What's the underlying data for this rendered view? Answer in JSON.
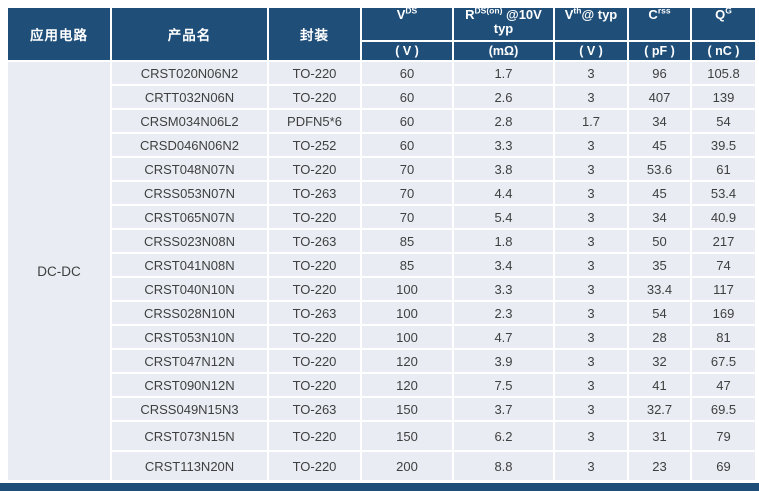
{
  "table": {
    "application": "DC-DC",
    "columns": [
      {
        "label": "应用电路"
      },
      {
        "label": "产品名"
      },
      {
        "label": "封装"
      },
      {
        "base": "V",
        "sup": "DS",
        "rest": "",
        "line2": "",
        "unit": "( V )"
      },
      {
        "base": "R",
        "sup": "DS(on)",
        "rest": " @10V",
        "line2": "typ",
        "unit": "(mΩ)"
      },
      {
        "base": "V",
        "sup": "th",
        "rest": "@ typ",
        "line2": "",
        "unit": "( V )"
      },
      {
        "base": "C",
        "sup": "rss",
        "rest": "",
        "line2": "",
        "unit": "( pF )"
      },
      {
        "base": "Q",
        "sup": "G",
        "rest": "",
        "line2": "",
        "unit": "( nC )"
      }
    ],
    "rows": [
      {
        "product": "CRST020N06N2",
        "package": "TO-220",
        "vds": "60",
        "rdson": "1.7",
        "vth": "3",
        "crss": "96",
        "qg": "105.8",
        "tall": false
      },
      {
        "product": "CRTT032N06N",
        "package": "TO-220",
        "vds": "60",
        "rdson": "2.6",
        "vth": "3",
        "crss": "407",
        "qg": "139",
        "tall": false
      },
      {
        "product": "CRSM034N06L2",
        "package": "PDFN5*6",
        "vds": "60",
        "rdson": "2.8",
        "vth": "1.7",
        "crss": "34",
        "qg": "54",
        "tall": false
      },
      {
        "product": "CRSD046N06N2",
        "package": "TO-252",
        "vds": "60",
        "rdson": "3.3",
        "vth": "3",
        "crss": "45",
        "qg": "39.5",
        "tall": false
      },
      {
        "product": "CRST048N07N",
        "package": "TO-220",
        "vds": "70",
        "rdson": "3.8",
        "vth": "3",
        "crss": "53.6",
        "qg": "61",
        "tall": false
      },
      {
        "product": "CRSS053N07N",
        "package": "TO-263",
        "vds": "70",
        "rdson": "4.4",
        "vth": "3",
        "crss": "45",
        "qg": "53.4",
        "tall": false
      },
      {
        "product": "CRST065N07N",
        "package": "TO-220",
        "vds": "70",
        "rdson": "5.4",
        "vth": "3",
        "crss": "34",
        "qg": "40.9",
        "tall": false
      },
      {
        "product": "CRSS023N08N",
        "package": "TO-263",
        "vds": "85",
        "rdson": "1.8",
        "vth": "3",
        "crss": "50",
        "qg": "217",
        "tall": false
      },
      {
        "product": "CRST041N08N",
        "package": "TO-220",
        "vds": "85",
        "rdson": "3.4",
        "vth": "3",
        "crss": "35",
        "qg": "74",
        "tall": false
      },
      {
        "product": "CRST040N10N",
        "package": "TO-220",
        "vds": "100",
        "rdson": "3.3",
        "vth": "3",
        "crss": "33.4",
        "qg": "117",
        "tall": false
      },
      {
        "product": "CRSS028N10N",
        "package": "TO-263",
        "vds": "100",
        "rdson": "2.3",
        "vth": "3",
        "crss": "54",
        "qg": "169",
        "tall": false
      },
      {
        "product": "CRST053N10N",
        "package": "TO-220",
        "vds": "100",
        "rdson": "4.7",
        "vth": "3",
        "crss": "28",
        "qg": "81",
        "tall": false
      },
      {
        "product": "CRST047N12N",
        "package": "TO-220",
        "vds": "120",
        "rdson": "3.9",
        "vth": "3",
        "crss": "32",
        "qg": "67.5",
        "tall": false
      },
      {
        "product": "CRST090N12N",
        "package": "TO-220",
        "vds": "120",
        "rdson": "7.5",
        "vth": "3",
        "crss": "41",
        "qg": "47",
        "tall": false
      },
      {
        "product": "CRSS049N15N3",
        "package": "TO-263",
        "vds": "150",
        "rdson": "3.7",
        "vth": "3",
        "crss": "32.7",
        "qg": "69.5",
        "tall": false
      },
      {
        "product": "CRST073N15N",
        "package": "TO-220",
        "vds": "150",
        "rdson": "6.2",
        "vth": "3",
        "crss": "31",
        "qg": "79",
        "tall": true
      },
      {
        "product": "CRST113N20N",
        "package": "TO-220",
        "vds": "200",
        "rdson": "8.8",
        "vth": "3",
        "crss": "23",
        "qg": "69",
        "tall": true
      }
    ]
  },
  "colors": {
    "header_bg": "#1F4E79",
    "cell_bg": "#E9EDF3",
    "body_text": "#3F3F3F",
    "header_text": "#FFFFFF",
    "gap": "#FFFFFF"
  }
}
